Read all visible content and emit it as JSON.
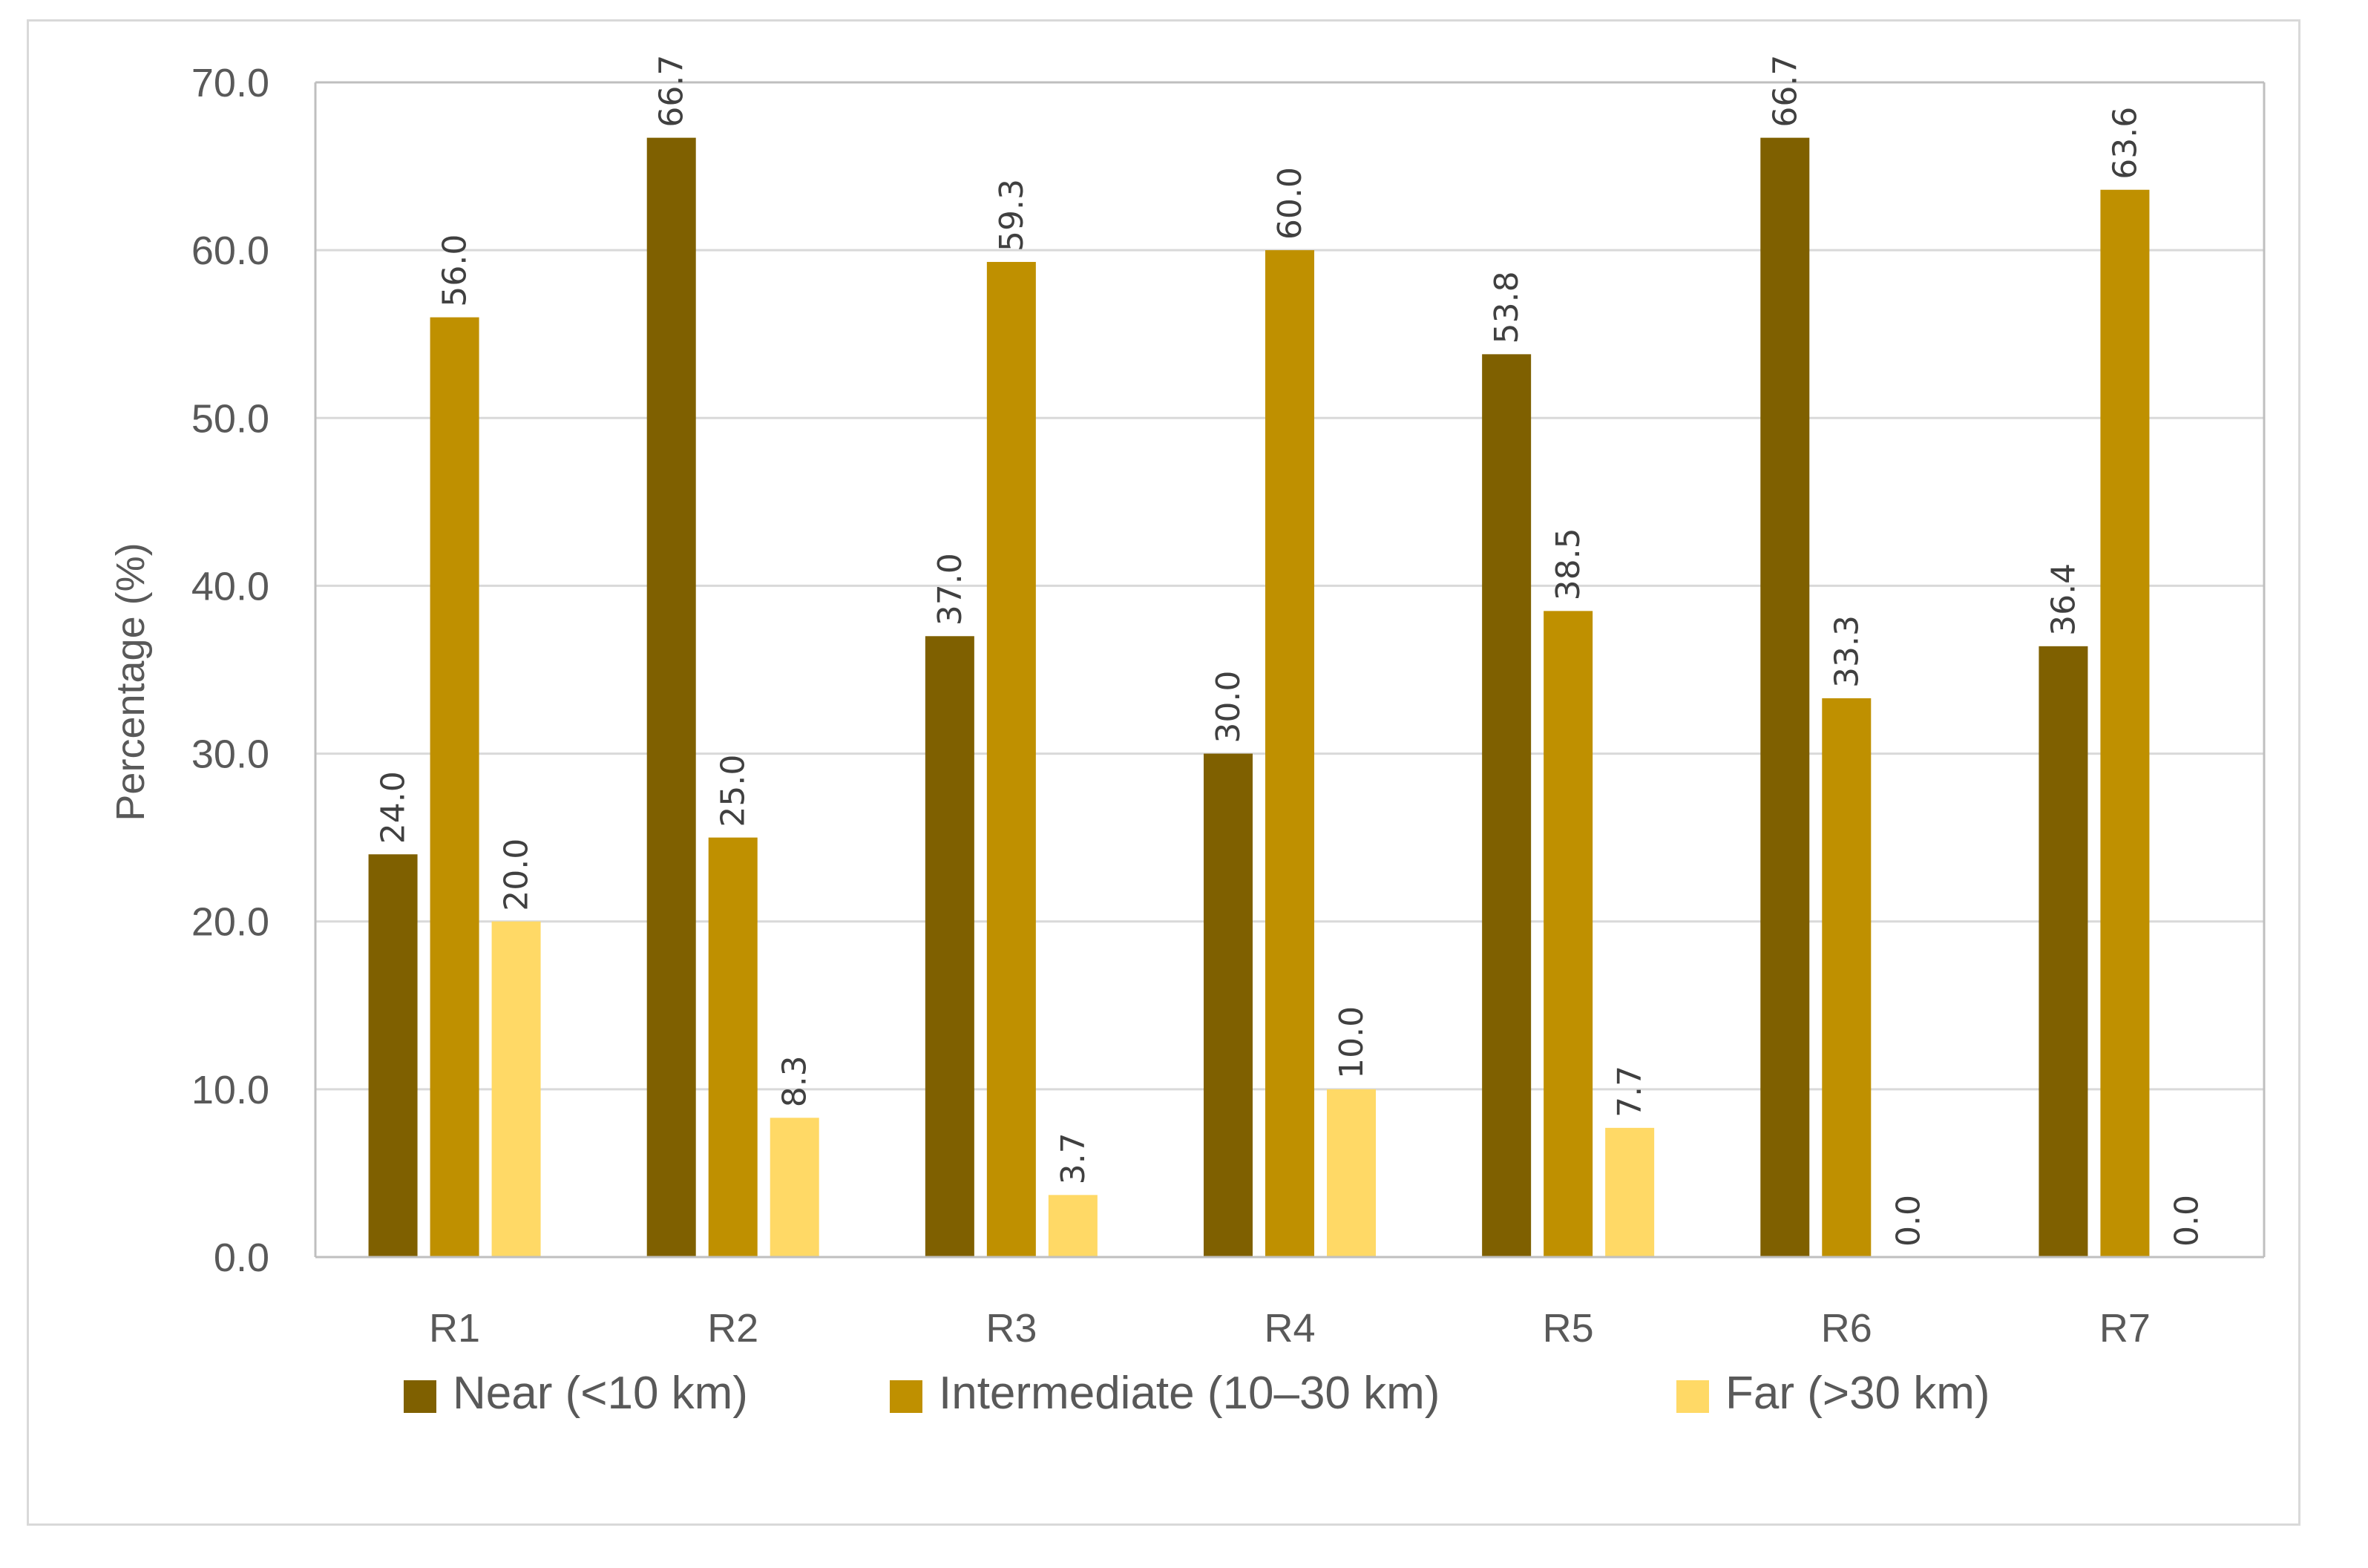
{
  "chart_data": {
    "type": "bar",
    "title": "",
    "xlabel": "",
    "ylabel": "Percentage (%)",
    "ylim": [
      0,
      70
    ],
    "yticks": [
      "0.0",
      "10.0",
      "20.0",
      "30.0",
      "40.0",
      "50.0",
      "60.0",
      "70.0"
    ],
    "categories": [
      "R1",
      "R2",
      "R3",
      "R4",
      "R5",
      "R6",
      "R7"
    ],
    "series": [
      {
        "name": "Near (<10 km)",
        "color": "#7f6000",
        "values": [
          24.0,
          66.7,
          37.0,
          30.0,
          53.8,
          66.7,
          36.4
        ],
        "labels": [
          "24.0",
          "66.7",
          "37.0",
          "30.0",
          "53.8",
          "66.7",
          "36.4"
        ]
      },
      {
        "name": "Intermediate (10–30 km)",
        "color": "#bf9000",
        "values": [
          56.0,
          25.0,
          59.3,
          60.0,
          38.5,
          33.3,
          63.6
        ],
        "labels": [
          "56.0",
          "25.0",
          "59.3",
          "60.0",
          "38.5",
          "33.3",
          "63.6"
        ]
      },
      {
        "name": "Far (>30 km)",
        "color": "#ffd966",
        "values": [
          20.0,
          8.3,
          3.7,
          10.0,
          7.7,
          0.0,
          0.0
        ],
        "labels": [
          "20.0",
          "8.3",
          "3.7",
          "10.0",
          "7.7",
          "0.0",
          "0.0"
        ]
      }
    ],
    "grid": true,
    "gridline_color": "#d9d9d9",
    "legend": "bottom"
  }
}
